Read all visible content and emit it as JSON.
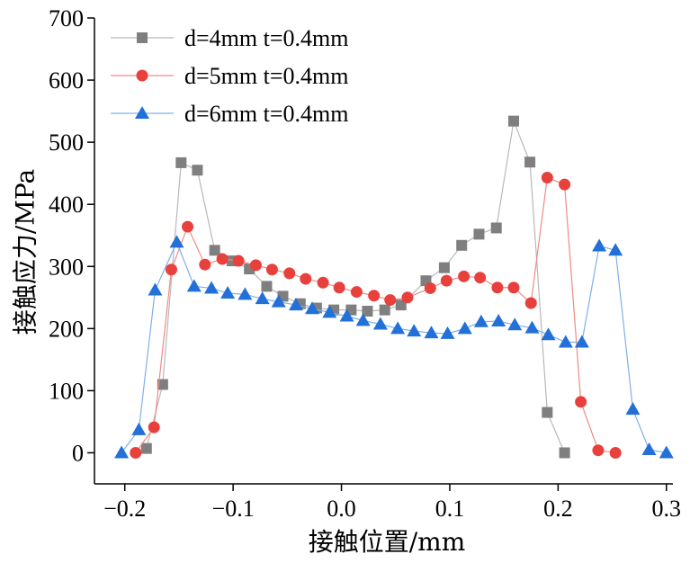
{
  "chart_data": {
    "type": "line",
    "xlabel": "接触位置/mm",
    "ylabel": "接触应力/MPa",
    "xlim": [
      -0.228,
      0.306
    ],
    "ylim": [
      -50,
      700
    ],
    "xticks": [
      {
        "value": -0.2,
        "label": "−0.2"
      },
      {
        "value": -0.1,
        "label": "−0.1"
      },
      {
        "value": 0,
        "label": "0.0"
      },
      0.1,
      0.2,
      0.3
    ],
    "yticks": [
      0,
      100,
      200,
      300,
      400,
      500,
      600,
      700
    ],
    "legend": "upper left",
    "series": [
      {
        "name": "d=4mm  t=0.4mm",
        "color": "#7f7f7f",
        "line_color": "#b8b8b8",
        "marker": "square",
        "x": [
          -0.18,
          -0.165,
          -0.148,
          -0.133,
          -0.117,
          -0.101,
          -0.085,
          -0.069,
          -0.054,
          -0.038,
          -0.023,
          -0.007,
          0.009,
          0.024,
          0.04,
          0.055,
          0.078,
          0.095,
          0.111,
          0.127,
          0.143,
          0.159,
          0.174,
          0.19,
          0.206
        ],
        "values": [
          7,
          110,
          467,
          455,
          326,
          309,
          296,
          268,
          252,
          240,
          233,
          230,
          230,
          228,
          230,
          238,
          277,
          298,
          334,
          352,
          362,
          534,
          468,
          65,
          0
        ]
      },
      {
        "name": "d=5mm  t=0.4mm",
        "color": "#e8403c",
        "line_color": "#f08a86",
        "marker": "circle",
        "x": [
          -0.19,
          -0.173,
          -0.157,
          -0.142,
          -0.126,
          -0.11,
          -0.095,
          -0.079,
          -0.064,
          -0.048,
          -0.033,
          -0.017,
          -0.002,
          0.014,
          0.03,
          0.045,
          0.061,
          0.082,
          0.097,
          0.113,
          0.128,
          0.144,
          0.159,
          0.175,
          0.19,
          0.206,
          0.221,
          0.237,
          0.253
        ],
        "values": [
          0,
          41,
          295,
          364,
          303,
          312,
          309,
          302,
          295,
          289,
          280,
          274,
          266,
          259,
          253,
          246,
          250,
          265,
          277,
          284,
          282,
          266,
          266,
          241,
          443,
          432,
          82,
          4,
          0
        ]
      },
      {
        "name": "d=6mm  t=0.4mm",
        "color": "#2270d8",
        "line_color": "#7fb0e8",
        "marker": "triangle",
        "x": [
          -0.203,
          -0.187,
          -0.172,
          -0.152,
          -0.136,
          -0.12,
          -0.105,
          -0.089,
          -0.073,
          -0.058,
          -0.042,
          -0.027,
          -0.011,
          0.005,
          0.02,
          0.036,
          0.052,
          0.067,
          0.083,
          0.098,
          0.114,
          0.129,
          0.145,
          0.16,
          0.176,
          0.191,
          0.207,
          0.222,
          0.238,
          0.253,
          0.269,
          0.284,
          0.3
        ],
        "values": [
          0,
          37,
          262,
          339,
          268,
          265,
          257,
          255,
          248,
          243,
          238,
          232,
          226,
          220,
          213,
          207,
          200,
          196,
          193,
          192,
          200,
          211,
          212,
          206,
          201,
          190,
          178,
          178,
          333,
          326,
          70,
          5,
          0
        ]
      }
    ]
  }
}
